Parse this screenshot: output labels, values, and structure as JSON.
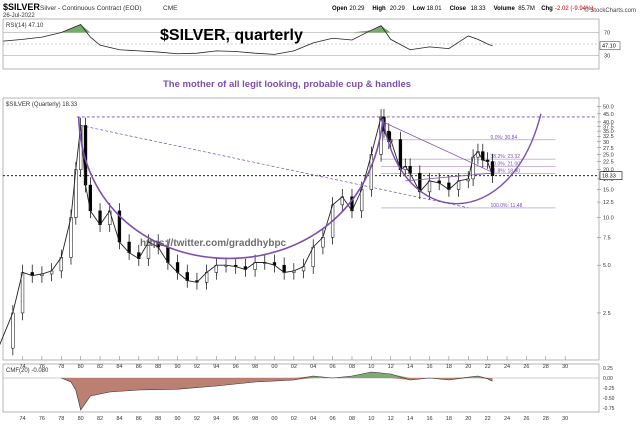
{
  "header": {
    "symbol": "$SILVER",
    "name": "Silver - Continuous Contract (EOD)",
    "exchange": "CME",
    "date": "26-Jul-2022",
    "stats": [
      {
        "label": "Open",
        "value": "20.29"
      },
      {
        "label": "High",
        "value": "20.29"
      },
      {
        "label": "Low",
        "value": "18.01"
      },
      {
        "label": "Close",
        "value": "18.33"
      },
      {
        "label": "Volume",
        "value": "85.7M"
      },
      {
        "label": "Chg",
        "value": "-2.02 (-9.94%)",
        "color": "#cc0000"
      }
    ],
    "attribution": "© StockCharts.com"
  },
  "annotations": {
    "big_title": "$SILVER, quarterly",
    "subtitle": "The mother of all legit looking, probable cup & handles",
    "watermark": "https://twitter.com/graddhybpc",
    "purple": "#7a4fb0"
  },
  "chart_data": [
    {
      "type": "line",
      "panel": "RSI",
      "legend": "RSI(14) 47.10",
      "value_box": "47.10",
      "y_ticks": [
        30,
        50,
        70
      ],
      "ylim": [
        10,
        90
      ],
      "shaded_above": 70,
      "shaded_below": 30,
      "x": [
        1972,
        1974,
        1976,
        1978,
        1980,
        1981,
        1982,
        1984,
        1986,
        1988,
        1990,
        1992,
        1994,
        1996,
        1998,
        2000,
        2002,
        2004,
        2006,
        2008,
        2010,
        2011,
        2012,
        2014,
        2016,
        2018,
        2020,
        2021,
        2022,
        2022.5
      ],
      "values": [
        55,
        58,
        62,
        70,
        84,
        62,
        48,
        40,
        38,
        36,
        33,
        34,
        38,
        37,
        34,
        32,
        38,
        52,
        60,
        57,
        74,
        82,
        58,
        40,
        45,
        42,
        64,
        58,
        50,
        47
      ]
    },
    {
      "type": "candlestick",
      "panel": "price",
      "legend": "$SILVER (Quarterly) 18.33",
      "scale": "log",
      "ylim": [
        1.3,
        55
      ],
      "y_tick_labels": [
        "2.5",
        "5.0",
        "7.5",
        "10.0",
        "12.5",
        "15.0",
        "17.5",
        "20.0",
        "22.5",
        "25.0",
        "27.5",
        "30",
        "32.5",
        "35.0",
        "37.5",
        "40.0",
        "45.0",
        "50.0"
      ],
      "x_tick_labels": [
        "74",
        "76",
        "78",
        "80",
        "82",
        "84",
        "86",
        "88",
        "90",
        "92",
        "94",
        "96",
        "98",
        "00",
        "02",
        "04",
        "06",
        "08",
        "10",
        "12",
        "14",
        "16",
        "18",
        "20",
        "22",
        "24",
        "26",
        "28",
        "30"
      ],
      "last_close": "18.33",
      "series": [
        {
          "x": [
            1971.5,
            1973,
            1974,
            1975,
            1976,
            1977,
            1978,
            1979,
            1979.5,
            1980,
            1980.5,
            1981,
            1982,
            1983,
            1984,
            1985,
            1986,
            1987,
            1988,
            1989,
            1990,
            1991,
            1992,
            1993,
            1994,
            1995,
            1996,
            1997,
            1998,
            1999,
            2000,
            2001,
            2002,
            2003,
            2004,
            2005,
            2006,
            2007,
            2008,
            2009,
            2010,
            2011,
            2011.3,
            2011.8,
            2012,
            2013,
            2013.5,
            2014,
            2015,
            2016,
            2017,
            2018,
            2019,
            2020,
            2020.5,
            2021,
            2021.5,
            2022,
            2022.5
          ],
          "values": [
            1.5,
            2.5,
            4.5,
            4.3,
            4.4,
            4.6,
            5.6,
            10,
            20,
            38,
            16,
            11,
            9,
            11,
            7,
            6,
            5.5,
            7,
            6.5,
            5.2,
            4.5,
            4,
            3.9,
            4.5,
            5,
            5,
            4.9,
            4.7,
            5.2,
            5.2,
            5,
            4.5,
            4.6,
            4.9,
            6.5,
            7.5,
            12,
            13.5,
            11,
            15,
            25,
            43,
            35,
            30,
            31,
            20,
            21,
            19,
            14.5,
            17,
            16.5,
            15,
            17,
            17.5,
            24,
            26,
            23,
            22.5,
            18.33
          ]
        }
      ],
      "fibonacci": [
        {
          "label": "0.0%: 30.84",
          "value": 30.84
        },
        {
          "label": "38.2%: 23.32",
          "value": 23.32
        },
        {
          "label": "50.0%: 21.00",
          "value": 21.0
        },
        {
          "label": "61.8%: 18.90",
          "value": 18.9
        },
        {
          "label": "100.0%: 11.48",
          "value": 11.48
        }
      ]
    },
    {
      "type": "area",
      "panel": "CMF",
      "legend": "CMF(20) -0.080",
      "y_tick_labels": [
        "0.25",
        "0.00",
        "-0.25",
        "-0.50",
        "-0.75"
      ],
      "ylim": [
        -0.8,
        0.3
      ],
      "x": [
        1978,
        1979,
        1979.5,
        1980,
        1981,
        1983,
        1986,
        1990,
        1994,
        1998,
        2002,
        2004,
        2006,
        2008,
        2010,
        2012,
        2014,
        2016,
        2018,
        2020,
        2021,
        2022,
        2022.5
      ],
      "values": [
        0,
        -0.1,
        -0.3,
        -0.8,
        -0.45,
        -0.35,
        -0.3,
        -0.28,
        -0.2,
        -0.1,
        -0.05,
        0.05,
        0.0,
        0.05,
        0.15,
        0.1,
        -0.05,
        0.0,
        -0.05,
        0.02,
        0.05,
        -0.02,
        -0.08
      ]
    }
  ]
}
